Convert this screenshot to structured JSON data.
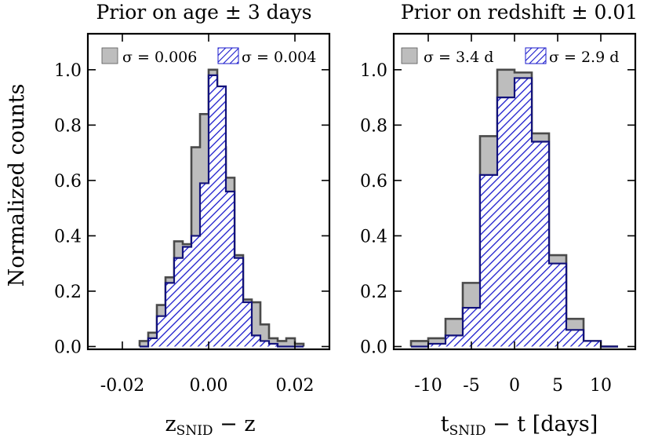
{
  "chart_data": [
    {
      "type": "bar",
      "subtype": "step-histogram",
      "title": "Prior on age ± 3 days",
      "xlabel_main": "z",
      "xlabel_sub": "SNID",
      "xlabel_rest": " − z",
      "ylabel": "Normalized counts",
      "xlim": [
        -0.028,
        0.028
      ],
      "ylim": [
        -0.01,
        1.13
      ],
      "xticks": [
        -0.02,
        0.0,
        0.02
      ],
      "xtick_labels": [
        "-0.02",
        "0.00",
        "0.02"
      ],
      "yticks": [
        0.0,
        0.2,
        0.4,
        0.6,
        0.8,
        1.0
      ],
      "ytick_labels": [
        "0.0",
        "0.2",
        "0.4",
        "0.6",
        "0.8",
        "1.0"
      ],
      "bin_edges": [
        -0.016,
        -0.014,
        -0.012,
        -0.01,
        -0.008,
        -0.006,
        -0.004,
        -0.002,
        0.0,
        0.002,
        0.004,
        0.006,
        0.008,
        0.01,
        0.012,
        0.014,
        0.016,
        0.018,
        0.02,
        0.022
      ],
      "series": [
        {
          "name": "σ = 0.006",
          "style": "gray-filled",
          "color": "#bdbdbd",
          "values": [
            0.02,
            0.05,
            0.15,
            0.25,
            0.38,
            0.37,
            0.72,
            0.84,
            1.0,
            0.72,
            0.61,
            0.33,
            0.17,
            0.16,
            0.08,
            0.03,
            0.02,
            0.03,
            0.01
          ]
        },
        {
          "name": "σ = 0.004",
          "style": "blue-hatched",
          "color": "#1a1acc",
          "values": [
            0.0,
            0.03,
            0.11,
            0.23,
            0.32,
            0.36,
            0.4,
            0.59,
            0.98,
            0.94,
            0.56,
            0.32,
            0.16,
            0.04,
            0.02,
            0.01,
            0.0,
            0.0,
            0.0
          ]
        }
      ]
    },
    {
      "type": "bar",
      "subtype": "step-histogram",
      "title": "Prior on redshift ± 0.01",
      "xlabel_main": "t",
      "xlabel_sub": "SNID",
      "xlabel_rest": " − t [days]",
      "ylabel": "",
      "xlim": [
        -14,
        14
      ],
      "ylim": [
        -0.01,
        1.13
      ],
      "xticks": [
        -10,
        -5,
        0,
        5,
        10
      ],
      "xtick_labels": [
        "-10",
        "-5",
        "0",
        "5",
        "10"
      ],
      "yticks": [
        0.0,
        0.2,
        0.4,
        0.6,
        0.8,
        1.0
      ],
      "ytick_labels": [
        "0.0",
        "0.2",
        "0.4",
        "0.6",
        "0.8",
        "1.0"
      ],
      "bin_edges": [
        -12,
        -10,
        -8,
        -6,
        -4,
        -2,
        0,
        2,
        4,
        6,
        8,
        10,
        12
      ],
      "series": [
        {
          "name": "σ = 3.4 d",
          "style": "gray-filled",
          "color": "#bdbdbd",
          "values": [
            0.02,
            0.03,
            0.1,
            0.23,
            0.76,
            1.0,
            0.99,
            0.77,
            0.33,
            0.1,
            0.02,
            0.0
          ]
        },
        {
          "name": "σ = 2.9 d",
          "style": "blue-hatched",
          "color": "#1a1acc",
          "values": [
            0.0,
            0.01,
            0.04,
            0.14,
            0.62,
            0.9,
            0.97,
            0.74,
            0.3,
            0.06,
            0.02,
            0.0
          ]
        }
      ]
    }
  ]
}
